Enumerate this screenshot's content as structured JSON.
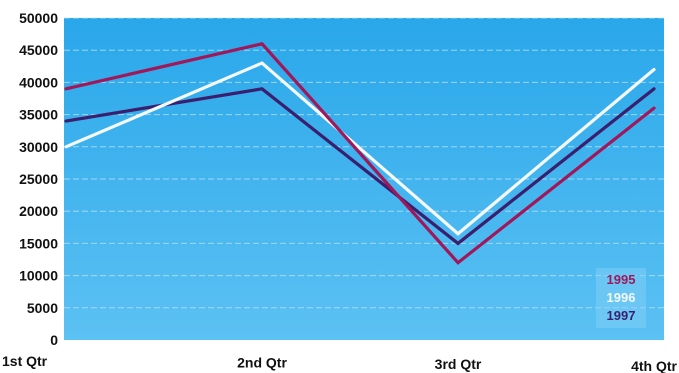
{
  "chart_data": {
    "type": "line",
    "title": "",
    "xlabel": "",
    "ylabel": "",
    "categories": [
      "1st Qtr",
      "2nd Qtr",
      "3rd Qtr",
      "4th Qtr"
    ],
    "ylim": [
      0,
      50000
    ],
    "yticks": [
      0,
      5000,
      10000,
      15000,
      20000,
      25000,
      30000,
      35000,
      40000,
      45000,
      50000
    ],
    "grid": true,
    "legend_position": "bottom-right",
    "series": [
      {
        "name": "1995",
        "values": [
          39000,
          46000,
          12000,
          36000
        ],
        "color": "#a0185a"
      },
      {
        "name": "1996",
        "values": [
          30000,
          43000,
          16500,
          42000
        ],
        "color": "#f4f8ff"
      },
      {
        "name": "1997",
        "values": [
          34000,
          39000,
          15000,
          39000
        ],
        "color": "#3a1f6e"
      }
    ],
    "background": {
      "plot_top_color": "#29a7ea",
      "plot_bottom_color": "#5cc1f3",
      "gridline_color": "#bfe4fa",
      "page_color": "#ffffff"
    }
  }
}
